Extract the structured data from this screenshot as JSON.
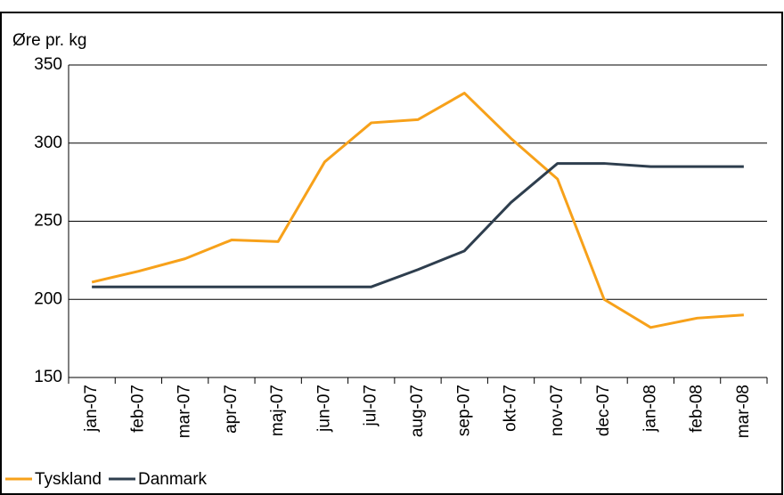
{
  "chart_data": {
    "type": "line",
    "ylabel": "Øre pr. kg",
    "categories": [
      "jan-07",
      "feb-07",
      "mar-07",
      "apr-07",
      "maj-07",
      "jun-07",
      "jul-07",
      "aug-07",
      "sep-07",
      "okt-07",
      "nov-07",
      "dec-07",
      "jan-08",
      "feb-08",
      "mar-08"
    ],
    "series": [
      {
        "name": "Tyskland",
        "color": "#f7a11a",
        "values": [
          211,
          218,
          226,
          238,
          237,
          288,
          313,
          315,
          332,
          303,
          277,
          200,
          182,
          188,
          190
        ]
      },
      {
        "name": "Danmark",
        "color": "#2e3e4e",
        "values": [
          208,
          208,
          208,
          208,
          208,
          208,
          208,
          219,
          231,
          262,
          287,
          287,
          285,
          285,
          285
        ]
      }
    ],
    "ylim": [
      150,
      350
    ],
    "yticks": [
      150,
      200,
      250,
      300,
      350
    ],
    "grid": true,
    "legend": "bottom-left"
  }
}
